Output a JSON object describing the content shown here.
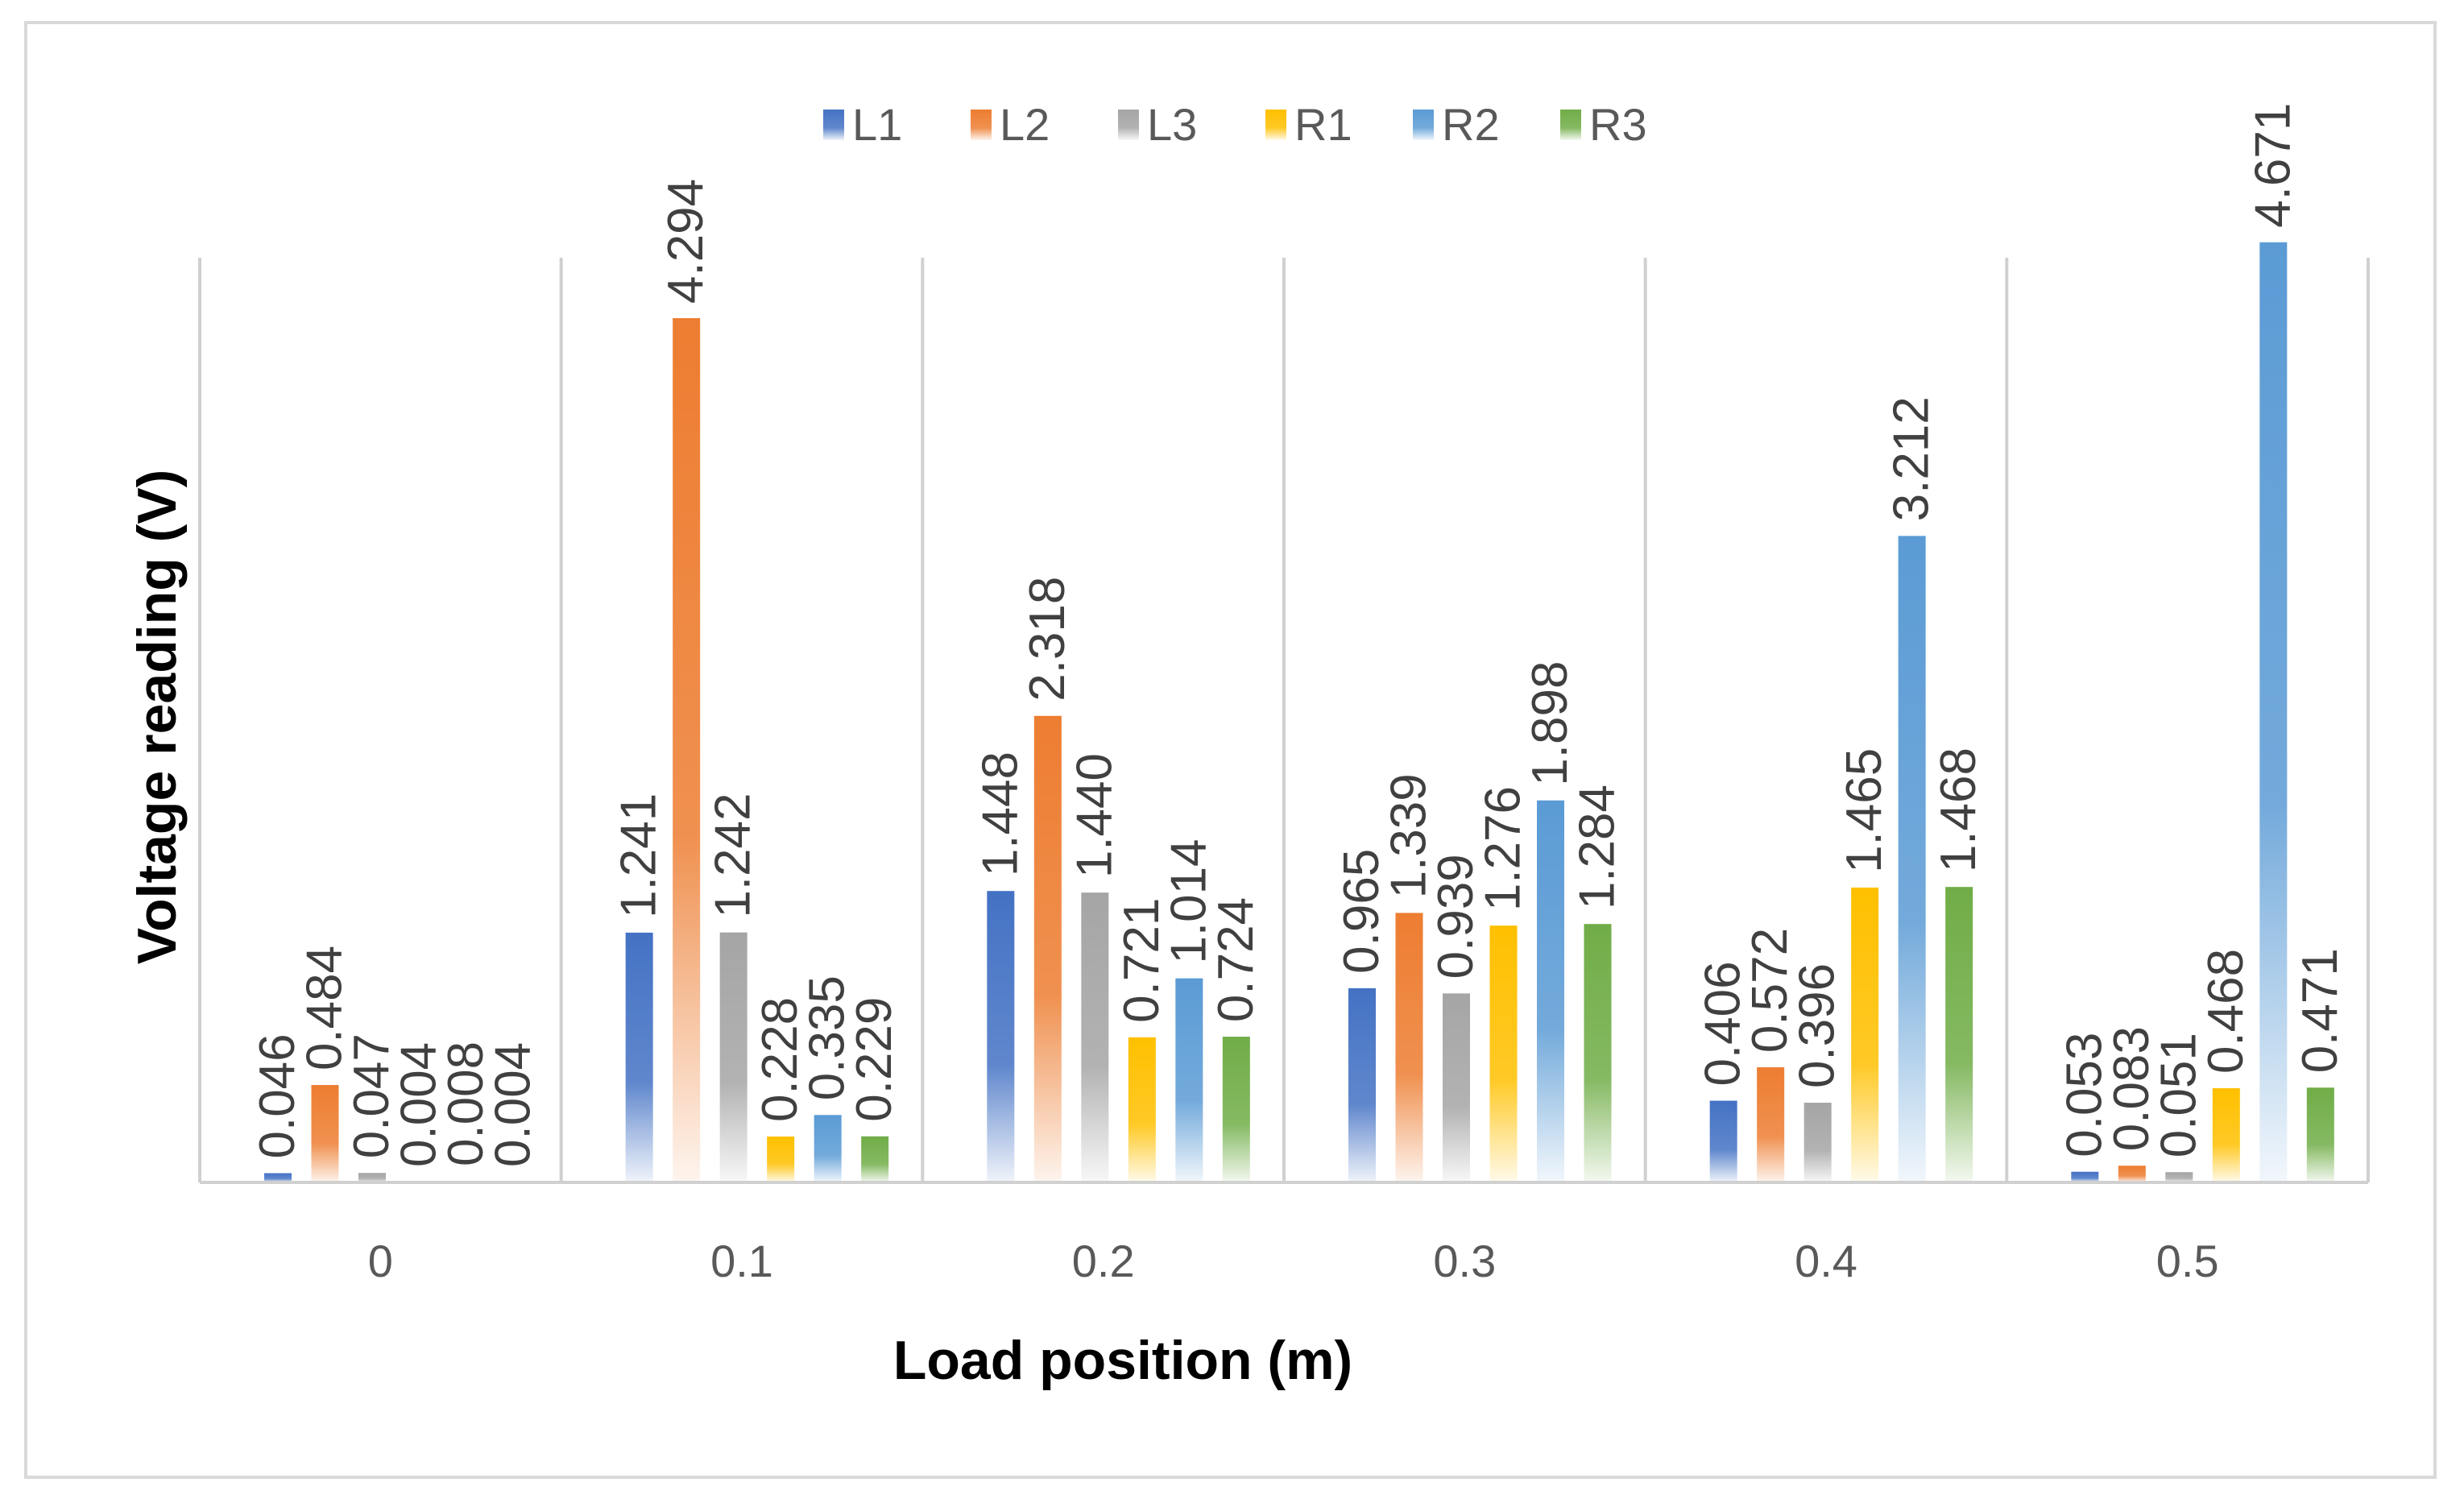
{
  "chart_data": {
    "type": "bar",
    "xlabel": "Load position (m)",
    "ylabel": "Voltage reading (V)",
    "categories": [
      "0",
      "0.1",
      "0.2",
      "0.3",
      "0.4",
      "0.5"
    ],
    "ylim": [
      0,
      5
    ],
    "grid": false,
    "legend_position": "top",
    "series": [
      {
        "name": "L1",
        "color": "#4472c4",
        "values": [
          0.046,
          1.241,
          1.448,
          0.965,
          0.406,
          0.053
        ],
        "labels": [
          "0.046",
          "1.241",
          "1.448",
          "0.965",
          "0.406",
          "0.053"
        ]
      },
      {
        "name": "L2",
        "color": "#ed7d31",
        "values": [
          0.484,
          4.294,
          2.318,
          1.339,
          0.572,
          0.083
        ],
        "labels": [
          "0.484",
          "4.294",
          "2.318",
          "1.339",
          "0.572",
          "0.083"
        ]
      },
      {
        "name": "L3",
        "color": "#a5a5a5",
        "values": [
          0.047,
          1.242,
          1.44,
          0.939,
          0.396,
          0.051
        ],
        "labels": [
          "0.047",
          "1.242",
          "1.440",
          "0.939",
          "0.396",
          "0.051"
        ]
      },
      {
        "name": "R1",
        "color": "#ffc000",
        "values": [
          0.004,
          0.228,
          0.721,
          1.276,
          1.465,
          0.468
        ],
        "labels": [
          "0.004",
          "0.228",
          "0.721",
          "1.276",
          "1.465",
          "0.468"
        ]
      },
      {
        "name": "R2",
        "color": "#5b9bd5",
        "values": [
          0.008,
          0.335,
          1.014,
          1.898,
          3.212,
          4.671
        ],
        "labels": [
          "0.008",
          "0.335",
          "1.014",
          "1.898",
          "3.212",
          "4.671"
        ]
      },
      {
        "name": "R3",
        "color": "#70ad47",
        "values": [
          0.004,
          0.229,
          0.724,
          1.284,
          1.468,
          0.471
        ],
        "labels": [
          "0.004",
          "0.229",
          "0.724",
          "1.284",
          "1.468",
          "0.471"
        ]
      }
    ]
  }
}
